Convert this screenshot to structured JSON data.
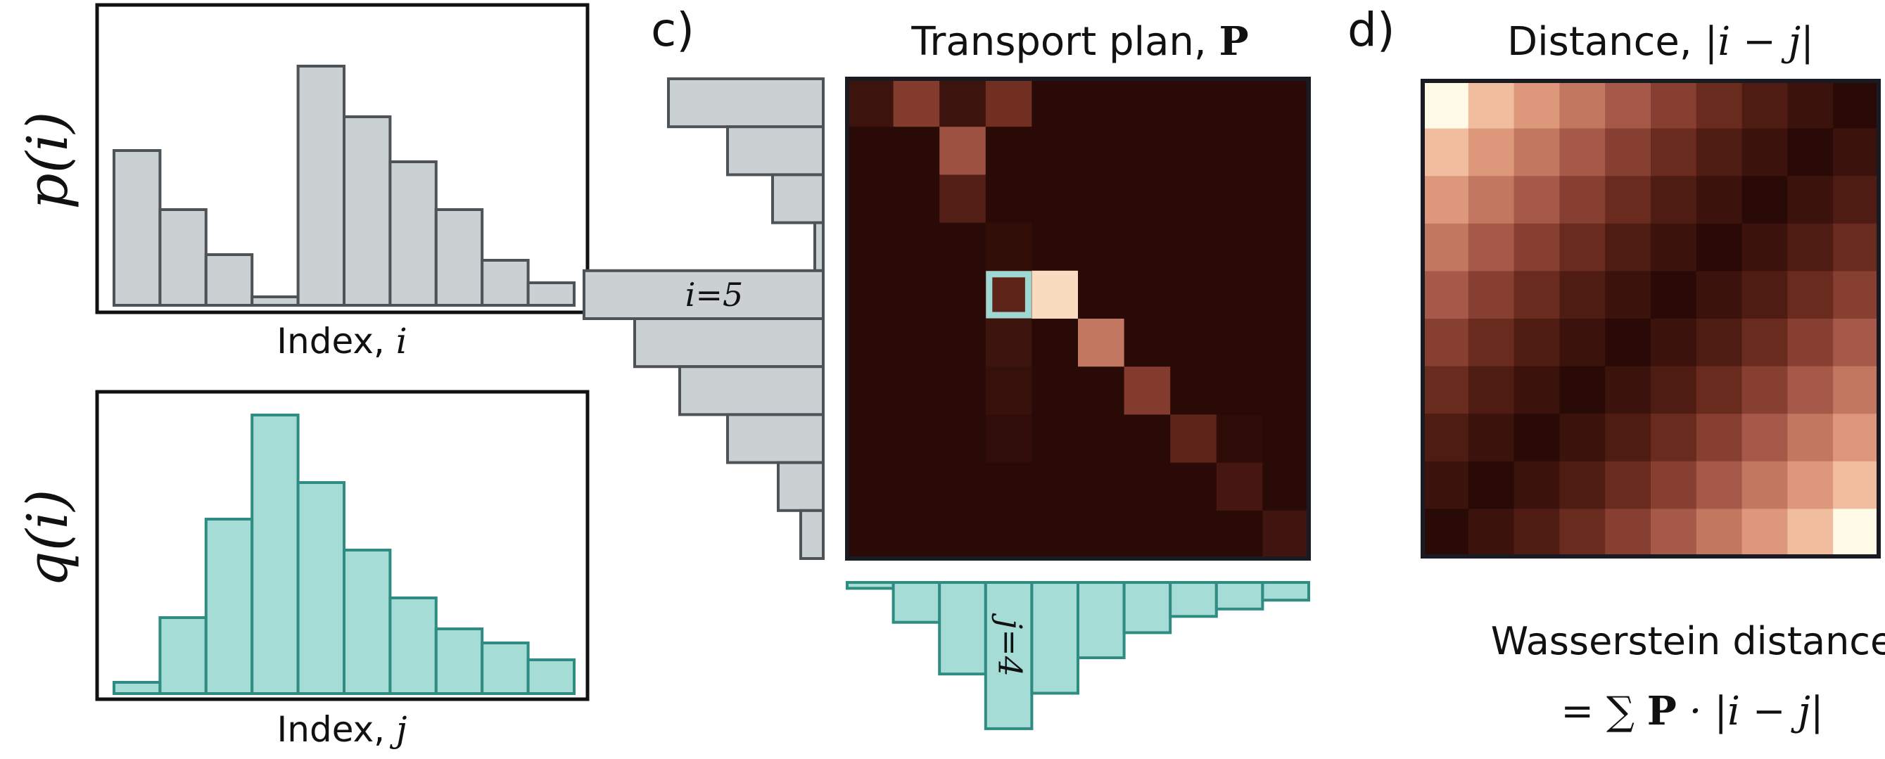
{
  "colors": {
    "p_fill": "#cbd0d3",
    "p_stroke": "#4d5356",
    "q_fill": "#a5dcd6",
    "q_stroke": "#2f8c82",
    "highlight": "#9fd8d2",
    "frame": "#1a1a22",
    "heat_low": "#2a0a06",
    "heat_high": "#fffbe6"
  },
  "panel_a": {
    "ylabel_func": "p",
    "ylabel_arg": "i",
    "xlabel_text": "Index, ",
    "xlabel_var": "i",
    "values": [
      0.55,
      0.34,
      0.18,
      0.03,
      0.85,
      0.67,
      0.51,
      0.34,
      0.16,
      0.08
    ]
  },
  "panel_b": {
    "ylabel_func": "q",
    "ylabel_arg": "i",
    "xlabel_text": "Index, ",
    "xlabel_var": "j",
    "values": [
      0.04,
      0.27,
      0.62,
      0.99,
      0.75,
      0.51,
      0.34,
      0.23,
      0.18,
      0.12
    ]
  },
  "panel_c": {
    "tag": "c)",
    "title_text": "Transport plan, ",
    "title_symbol": "P",
    "row_label": "i=5",
    "col_label": "j=4",
    "highlight_row": 5,
    "highlight_col": 4,
    "matrix": [
      [
        0.12,
        0.45,
        0.12,
        0.38,
        0,
        0,
        0,
        0,
        0,
        0
      ],
      [
        0,
        0,
        0.55,
        0,
        0,
        0,
        0,
        0,
        0,
        0
      ],
      [
        0,
        0,
        0.25,
        0,
        0,
        0,
        0,
        0,
        0,
        0
      ],
      [
        0,
        0,
        0,
        0.05,
        0,
        0,
        0,
        0,
        0,
        0
      ],
      [
        0,
        0,
        0,
        0.3,
        1.0,
        0,
        0,
        0,
        0,
        0
      ],
      [
        0,
        0,
        0,
        0.12,
        0,
        0.7,
        0,
        0,
        0,
        0
      ],
      [
        0,
        0,
        0,
        0.08,
        0,
        0,
        0.45,
        0,
        0,
        0
      ],
      [
        0,
        0,
        0,
        0.04,
        0,
        0,
        0,
        0.3,
        0.03,
        0
      ],
      [
        0,
        0,
        0,
        0,
        0,
        0,
        0,
        0,
        0.18,
        0
      ],
      [
        0,
        0,
        0,
        0,
        0,
        0,
        0,
        0,
        0,
        0.15
      ]
    ]
  },
  "panel_d": {
    "tag": "d)",
    "title_text": "Distance, ",
    "title_math": "|i − j|",
    "formula_caption": "Wasserstein distance",
    "formula_eq": "= ∑ ",
    "formula_symbol": "P",
    "formula_rest": " · |i − j|",
    "size": 10
  }
}
